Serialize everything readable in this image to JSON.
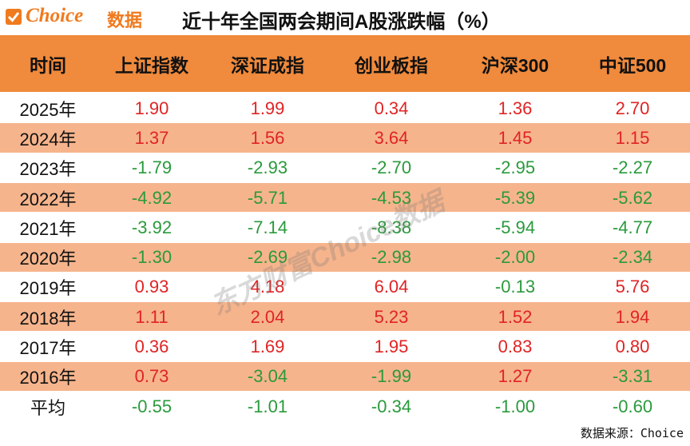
{
  "header": {
    "logo_brand": "Choice",
    "logo_suffix": "数据",
    "title": "近十年全国两会期间A股涨跌幅（%）"
  },
  "table": {
    "columns": [
      "时间",
      "上证指数",
      "深证成指",
      "创业板指",
      "沪深300",
      "中证500"
    ],
    "rows": [
      [
        "2025年",
        "1.90",
        "1.99",
        "0.34",
        "1.36",
        "2.70"
      ],
      [
        "2024年",
        "1.37",
        "1.56",
        "3.64",
        "1.45",
        "1.15"
      ],
      [
        "2023年",
        "-1.79",
        "-2.93",
        "-2.70",
        "-2.95",
        "-2.27"
      ],
      [
        "2022年",
        "-4.92",
        "-5.71",
        "-4.53",
        "-5.39",
        "-5.62"
      ],
      [
        "2021年",
        "-3.92",
        "-7.14",
        "-8.38",
        "-5.94",
        "-4.77"
      ],
      [
        "2020年",
        "-1.30",
        "-2.69",
        "-2.98",
        "-2.00",
        "-2.34"
      ],
      [
        "2019年",
        "0.93",
        "4.18",
        "6.04",
        "-0.13",
        "5.76"
      ],
      [
        "2018年",
        "1.11",
        "2.04",
        "5.23",
        "1.52",
        "1.94"
      ],
      [
        "2017年",
        "0.36",
        "1.69",
        "1.95",
        "0.83",
        "0.80"
      ],
      [
        "2016年",
        "0.73",
        "-3.04",
        "-1.99",
        "1.27",
        "-3.31"
      ],
      [
        "平均",
        "-0.55",
        "-1.01",
        "-0.34",
        "-1.00",
        "-0.60"
      ]
    ]
  },
  "watermark": "东方财富Choice数据",
  "footer": "数据来源：Choice"
}
